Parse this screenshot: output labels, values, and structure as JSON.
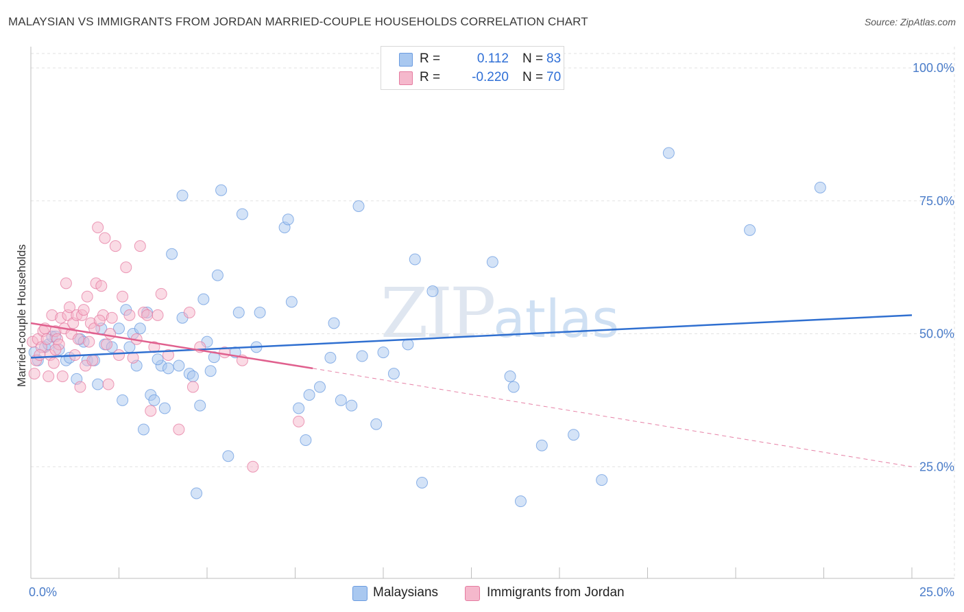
{
  "header": {
    "title": "MALAYSIAN VS IMMIGRANTS FROM JORDAN MARRIED-COUPLE HOUSEHOLDS CORRELATION CHART",
    "source": "Source: ZipAtlas.com"
  },
  "watermark": {
    "zip": "ZIP",
    "atlas": "atlas"
  },
  "legend": {
    "rows": [
      {
        "r_label": "R =",
        "r_value": "0.112",
        "n_label": "N =",
        "n_value": "83",
        "color": "#a9c8f0"
      },
      {
        "r_label": "R =",
        "r_value": "-0.220",
        "n_label": "N =",
        "n_value": "70",
        "color": "#f5b8cc"
      }
    ]
  },
  "bottom_legend": {
    "items": [
      {
        "label": "Malaysians",
        "color": "#a9c8f0"
      },
      {
        "label": "Immigrants from Jordan",
        "color": "#f5b8cc"
      }
    ]
  },
  "chart_data": {
    "type": "scatter",
    "title": "MALAYSIAN VS IMMIGRANTS FROM JORDAN MARRIED-COUPLE HOUSEHOLDS CORRELATION CHART",
    "xlabel": "",
    "ylabel": "Married-couple Households",
    "xlim": [
      0,
      25
    ],
    "ylim": [
      4,
      104
    ],
    "x_tick_labels": [
      {
        "value": 0,
        "label": "0.0%"
      },
      {
        "value": 25,
        "label": "25.0%"
      }
    ],
    "x_minor_ticks": [
      2.5,
      5,
      7.5,
      10,
      12.5,
      15,
      17.5,
      20,
      22.5,
      25
    ],
    "y_ticks": [
      {
        "value": 100,
        "label": "100.0%"
      },
      {
        "value": 75,
        "label": "75.0%"
      },
      {
        "value": 50,
        "label": "50.0%"
      },
      {
        "value": 25,
        "label": "25.0%"
      }
    ],
    "series": [
      {
        "name": "Malaysians",
        "color": "#6a9be0",
        "fill": "#a9c8f0",
        "trend": {
          "x0": 0,
          "y0": 45.5,
          "x1": 25,
          "y1": 53.5,
          "dashed_to": null
        },
        "points": [
          [
            0.1,
            46.5
          ],
          [
            0.2,
            45
          ],
          [
            0.4,
            47.5
          ],
          [
            0.5,
            48
          ],
          [
            0.6,
            49.5
          ],
          [
            0.7,
            49.5
          ],
          [
            0.8,
            47
          ],
          [
            1.0,
            45
          ],
          [
            1.1,
            45.5
          ],
          [
            1.3,
            41.5
          ],
          [
            1.4,
            49
          ],
          [
            1.5,
            48.5
          ],
          [
            1.6,
            45
          ],
          [
            1.8,
            45
          ],
          [
            1.9,
            40.5
          ],
          [
            2.0,
            51
          ],
          [
            2.1,
            48
          ],
          [
            2.3,
            47.5
          ],
          [
            2.5,
            51
          ],
          [
            2.6,
            37.5
          ],
          [
            2.7,
            54.5
          ],
          [
            2.8,
            47.5
          ],
          [
            2.9,
            50
          ],
          [
            3.0,
            44
          ],
          [
            3.1,
            51
          ],
          [
            3.2,
            32
          ],
          [
            3.3,
            54
          ],
          [
            3.4,
            38.5
          ],
          [
            3.5,
            37.5
          ],
          [
            3.7,
            44
          ],
          [
            3.8,
            36
          ],
          [
            3.9,
            43.5
          ],
          [
            4.0,
            65
          ],
          [
            4.2,
            44
          ],
          [
            4.3,
            76
          ],
          [
            4.3,
            53
          ],
          [
            4.5,
            42.5
          ],
          [
            4.6,
            42
          ],
          [
            4.7,
            20
          ],
          [
            4.8,
            36.5
          ],
          [
            4.9,
            56.5
          ],
          [
            5.0,
            48.5
          ],
          [
            5.1,
            43
          ],
          [
            5.3,
            61
          ],
          [
            5.4,
            77
          ],
          [
            5.6,
            27
          ],
          [
            5.8,
            46.5
          ],
          [
            5.9,
            54
          ],
          [
            6.0,
            72.5
          ],
          [
            6.4,
            47.5
          ],
          [
            6.5,
            54
          ],
          [
            7.2,
            70
          ],
          [
            7.3,
            71.5
          ],
          [
            7.4,
            56
          ],
          [
            7.6,
            36
          ],
          [
            7.8,
            30
          ],
          [
            7.9,
            38.5
          ],
          [
            8.2,
            40
          ],
          [
            8.5,
            45.5
          ],
          [
            8.6,
            52
          ],
          [
            8.8,
            37.5
          ],
          [
            9.1,
            36.5
          ],
          [
            9.3,
            74
          ],
          [
            9.8,
            33
          ],
          [
            10.0,
            46.5
          ],
          [
            10.3,
            42.5
          ],
          [
            10.7,
            48
          ],
          [
            10.9,
            64
          ],
          [
            11.1,
            22
          ],
          [
            11.4,
            58
          ],
          [
            13.1,
            63.5
          ],
          [
            13.6,
            42
          ],
          [
            13.7,
            40
          ],
          [
            13.9,
            18.5
          ],
          [
            14.5,
            29
          ],
          [
            15.4,
            31
          ],
          [
            16.2,
            22.5
          ],
          [
            18.1,
            84
          ],
          [
            20.4,
            69.5
          ],
          [
            22.4,
            77.5
          ],
          [
            9.4,
            45.8
          ],
          [
            3.6,
            45.2
          ],
          [
            5.2,
            45.6
          ]
        ]
      },
      {
        "name": "Immigrants from Jordan",
        "color": "#e57aa0",
        "fill": "#f5b8cc",
        "trend": {
          "x0": 0,
          "y0": 52,
          "x1": 8,
          "y1": 43.5,
          "dashed_to": {
            "x": 25,
            "y": 25
          }
        },
        "points": [
          [
            0.05,
            48.5
          ],
          [
            0.1,
            42.5
          ],
          [
            0.15,
            45
          ],
          [
            0.2,
            49
          ],
          [
            0.3,
            47.5
          ],
          [
            0.35,
            50.5
          ],
          [
            0.4,
            51
          ],
          [
            0.45,
            49
          ],
          [
            0.5,
            42
          ],
          [
            0.55,
            46
          ],
          [
            0.6,
            53.5
          ],
          [
            0.65,
            44.5
          ],
          [
            0.7,
            50.5
          ],
          [
            0.75,
            49
          ],
          [
            0.8,
            48
          ],
          [
            0.85,
            53
          ],
          [
            0.9,
            42
          ],
          [
            0.95,
            51
          ],
          [
            1.0,
            59.5
          ],
          [
            1.05,
            53.5
          ],
          [
            1.1,
            55
          ],
          [
            1.15,
            50
          ],
          [
            1.2,
            52
          ],
          [
            1.25,
            46
          ],
          [
            1.3,
            53.5
          ],
          [
            1.35,
            49
          ],
          [
            1.4,
            40
          ],
          [
            1.45,
            53.5
          ],
          [
            1.5,
            54.5
          ],
          [
            1.55,
            44
          ],
          [
            1.6,
            57
          ],
          [
            1.7,
            52
          ],
          [
            1.75,
            45
          ],
          [
            1.8,
            51
          ],
          [
            1.85,
            59.5
          ],
          [
            1.9,
            70
          ],
          [
            2.0,
            59
          ],
          [
            2.05,
            53.5
          ],
          [
            2.1,
            68
          ],
          [
            2.15,
            48
          ],
          [
            2.2,
            40.5
          ],
          [
            2.3,
            53
          ],
          [
            2.4,
            66.5
          ],
          [
            2.5,
            46
          ],
          [
            2.6,
            57
          ],
          [
            2.7,
            62.5
          ],
          [
            2.8,
            53.5
          ],
          [
            3.0,
            49
          ],
          [
            3.1,
            66.5
          ],
          [
            3.2,
            54
          ],
          [
            3.3,
            53.5
          ],
          [
            3.5,
            47.5
          ],
          [
            3.6,
            53.5
          ],
          [
            3.7,
            57.5
          ],
          [
            3.9,
            46
          ],
          [
            4.2,
            32
          ],
          [
            4.5,
            54
          ],
          [
            4.6,
            40
          ],
          [
            4.8,
            47.5
          ],
          [
            5.5,
            46.5
          ],
          [
            6.0,
            45
          ],
          [
            6.3,
            25
          ],
          [
            7.6,
            33.5
          ],
          [
            3.4,
            35.5
          ],
          [
            1.65,
            48.5
          ],
          [
            0.25,
            46
          ],
          [
            2.25,
            50
          ],
          [
            1.95,
            52.5
          ],
          [
            0.7,
            47
          ],
          [
            2.9,
            45.5
          ]
        ]
      }
    ]
  }
}
